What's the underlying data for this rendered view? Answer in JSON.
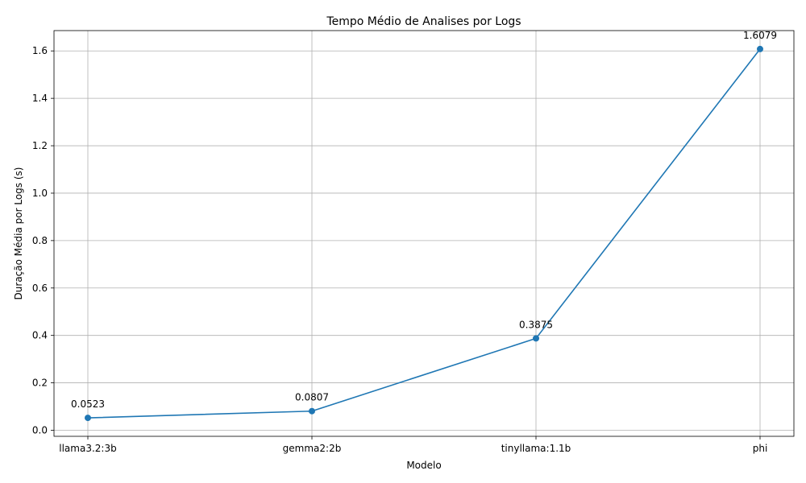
{
  "chart_data": {
    "type": "line",
    "title": "Tempo Médio de Analises por Logs",
    "xlabel": "Modelo",
    "ylabel": "Duração Média por Logs (s)",
    "categories": [
      "llama3.2:3b",
      "gemma2:2b",
      "tinyllama:1.1b",
      "phi"
    ],
    "values": [
      0.0523,
      0.0807,
      0.3875,
      1.6079
    ],
    "data_labels": [
      "0.0523",
      "0.0807",
      "0.3875",
      "1.6079"
    ],
    "y_ticks": [
      "0.0",
      "0.2",
      "0.4",
      "0.6",
      "0.8",
      "1.0",
      "1.2",
      "1.4",
      "1.6"
    ],
    "ylim": [
      -0.0255,
      1.6857
    ],
    "grid": true,
    "line_color": "#1f77b4",
    "marker": "circle"
  }
}
